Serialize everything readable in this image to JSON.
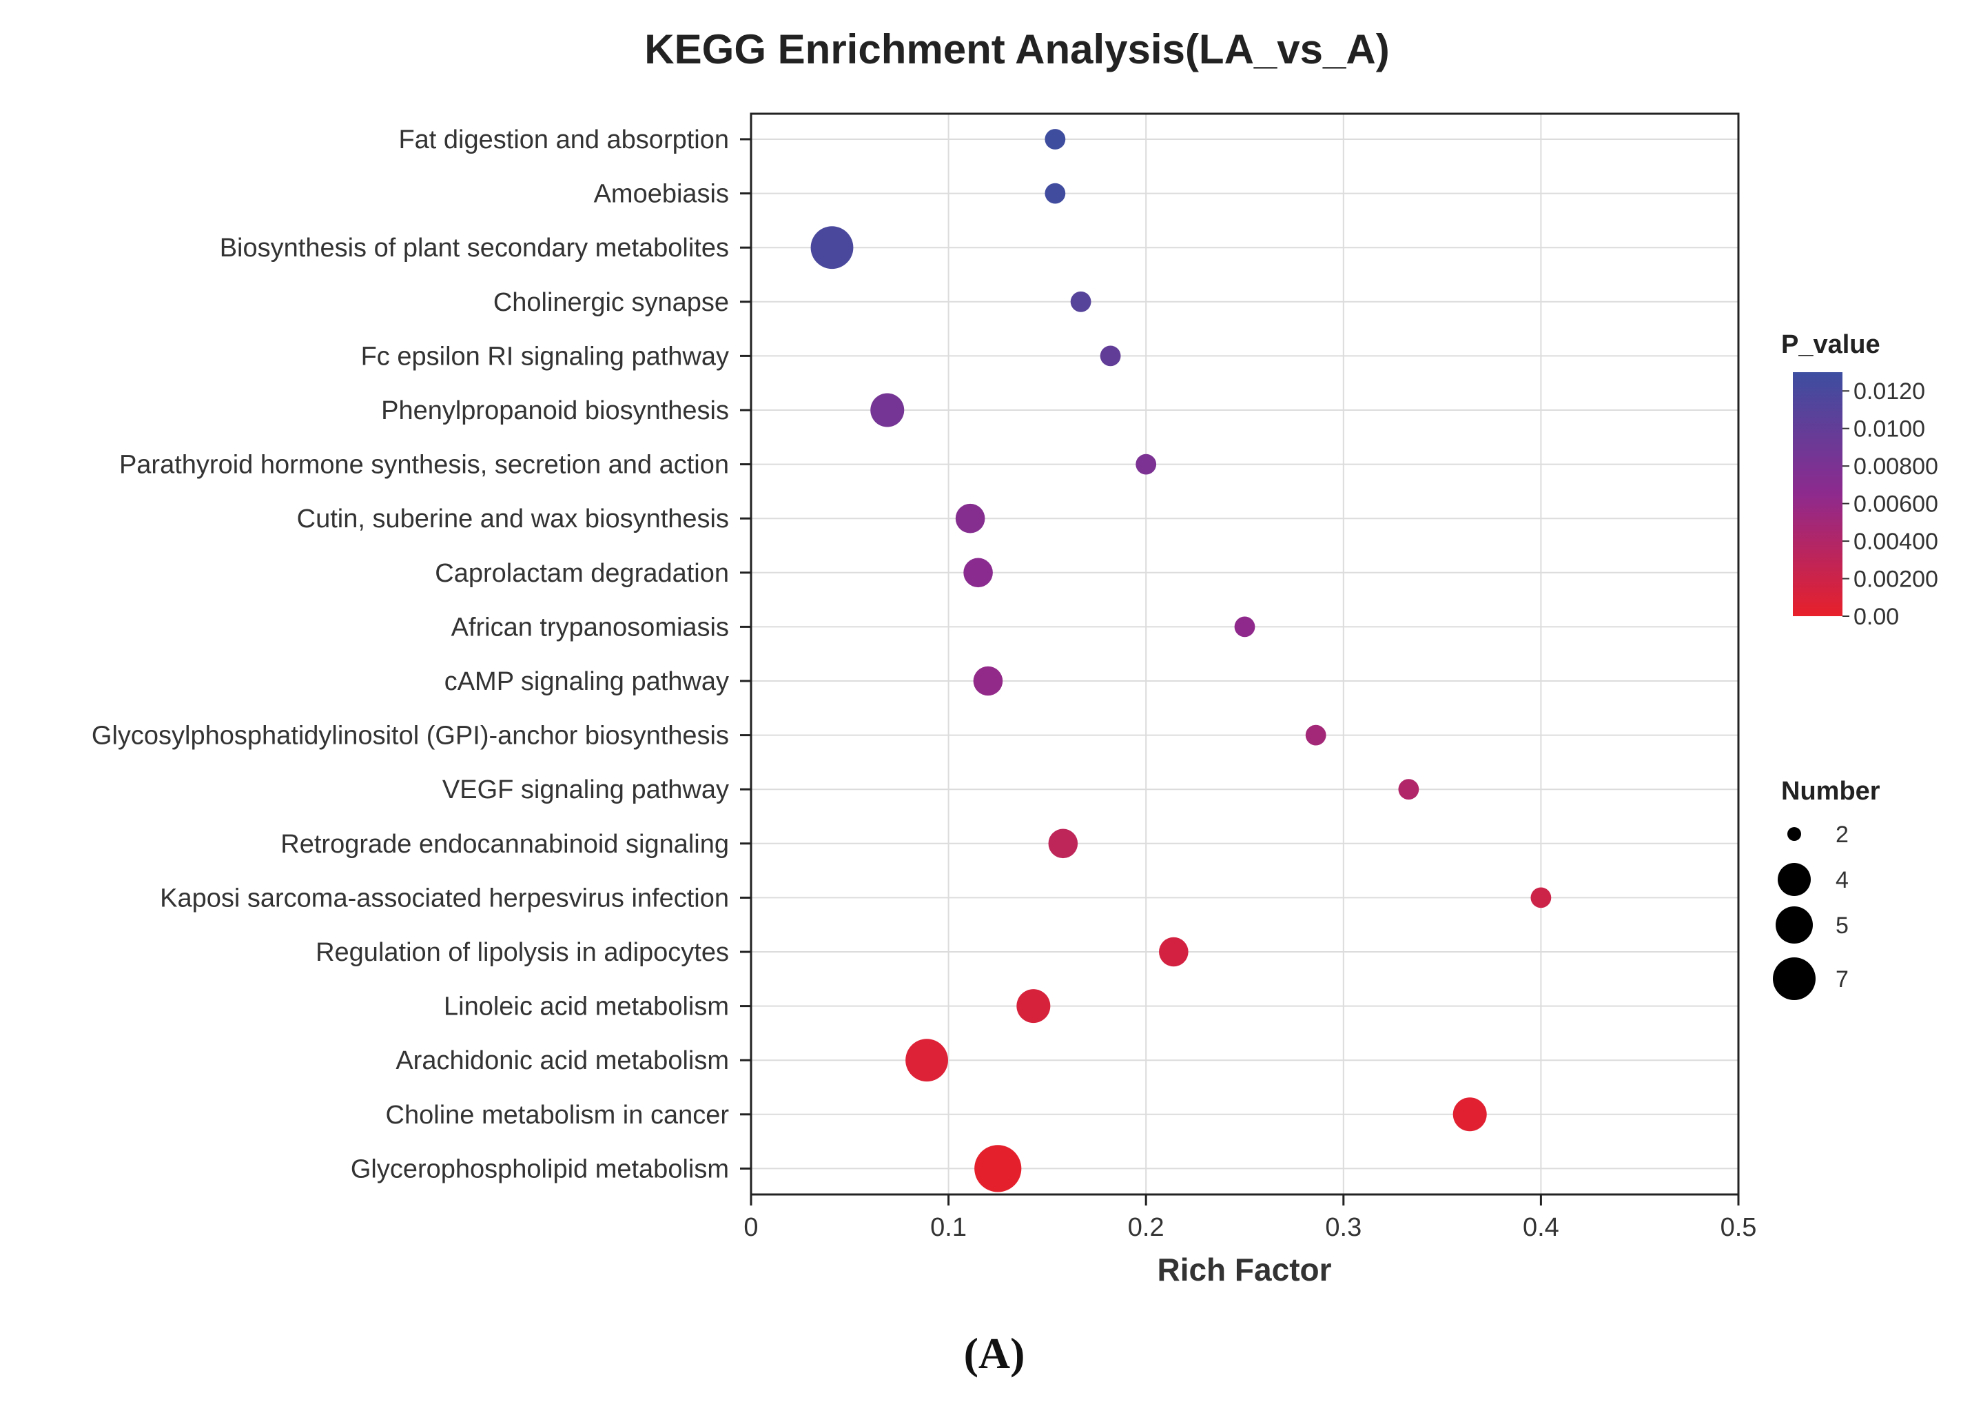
{
  "chart_data": {
    "type": "scatter",
    "title": "KEGG Enrichment Analysis(LA_vs_A)",
    "xlabel": "Rich Factor",
    "ylabel": "",
    "xlim": [
      0,
      0.5
    ],
    "xticks": [
      0,
      0.1,
      0.2,
      0.3,
      0.4,
      0.5
    ],
    "xtick_labels": [
      "0",
      "0.1",
      "0.2",
      "0.3",
      "0.4",
      "0.5"
    ],
    "grid": true,
    "points": [
      {
        "pathway": "Fat digestion and absorption",
        "rich_factor": 0.154,
        "p_value": 0.0128,
        "number": 2
      },
      {
        "pathway": "Amoebiasis",
        "rich_factor": 0.154,
        "p_value": 0.0127,
        "number": 2
      },
      {
        "pathway": "Biosynthesis of plant secondary metabolites",
        "rich_factor": 0.041,
        "p_value": 0.012,
        "number": 7
      },
      {
        "pathway": "Cholinergic synapse",
        "rich_factor": 0.167,
        "p_value": 0.011,
        "number": 2
      },
      {
        "pathway": "Fc epsilon RI signaling pathway",
        "rich_factor": 0.182,
        "p_value": 0.01,
        "number": 2
      },
      {
        "pathway": "Phenylpropanoid biosynthesis",
        "rich_factor": 0.069,
        "p_value": 0.0085,
        "number": 5
      },
      {
        "pathway": "Parathyroid hormone synthesis, secretion and action",
        "rich_factor": 0.2,
        "p_value": 0.008,
        "number": 2
      },
      {
        "pathway": "Cutin, suberine and wax biosynthesis",
        "rich_factor": 0.111,
        "p_value": 0.0072,
        "number": 4
      },
      {
        "pathway": "Caprolactam degradation",
        "rich_factor": 0.115,
        "p_value": 0.0068,
        "number": 4
      },
      {
        "pathway": "African trypanosomiasis",
        "rich_factor": 0.25,
        "p_value": 0.0064,
        "number": 2
      },
      {
        "pathway": "cAMP signaling pathway",
        "rich_factor": 0.12,
        "p_value": 0.0062,
        "number": 4
      },
      {
        "pathway": "Glycosylphosphatidylinositol (GPI)-anchor biosynthesis",
        "rich_factor": 0.286,
        "p_value": 0.005,
        "number": 2
      },
      {
        "pathway": "VEGF signaling pathway",
        "rich_factor": 0.333,
        "p_value": 0.004,
        "number": 2
      },
      {
        "pathway": "Retrograde endocannabinoid signaling",
        "rich_factor": 0.158,
        "p_value": 0.003,
        "number": 4
      },
      {
        "pathway": "Kaposi sarcoma-associated herpesvirus infection",
        "rich_factor": 0.4,
        "p_value": 0.002,
        "number": 2
      },
      {
        "pathway": "Regulation of lipolysis in adipocytes",
        "rich_factor": 0.214,
        "p_value": 0.0015,
        "number": 4
      },
      {
        "pathway": "Linoleic acid metabolism",
        "rich_factor": 0.143,
        "p_value": 0.0012,
        "number": 5
      },
      {
        "pathway": "Arachidonic acid metabolism",
        "rich_factor": 0.089,
        "p_value": 0.0008,
        "number": 7
      },
      {
        "pathway": "Choline metabolism in cancer",
        "rich_factor": 0.364,
        "p_value": 0.0005,
        "number": 5
      },
      {
        "pathway": "Glycerophospholipid metabolism",
        "rich_factor": 0.125,
        "p_value": 0.0002,
        "number": 8
      }
    ],
    "color_legend": {
      "title": "P_value",
      "min": 0,
      "max": 0.013,
      "ticks": [
        0.012,
        0.01,
        0.008,
        0.006,
        0.004,
        0.002,
        0.0
      ],
      "tick_labels": [
        "0.0120",
        "0.0100",
        "0.00800",
        "0.00600",
        "0.00400",
        "0.00200",
        "0.00"
      ],
      "low_color": "#e8202a",
      "mid_color": "#8e2a8e",
      "high_color": "#3d4ea0"
    },
    "size_legend": {
      "title": "Number",
      "values": [
        2,
        4,
        5,
        7
      ],
      "labels": [
        "2",
        "4",
        "5",
        "7"
      ]
    }
  },
  "caption": "(A)",
  "colors": {
    "grid": "#dcdcdc",
    "axis": "#222222",
    "legend_dot": "#000000"
  }
}
